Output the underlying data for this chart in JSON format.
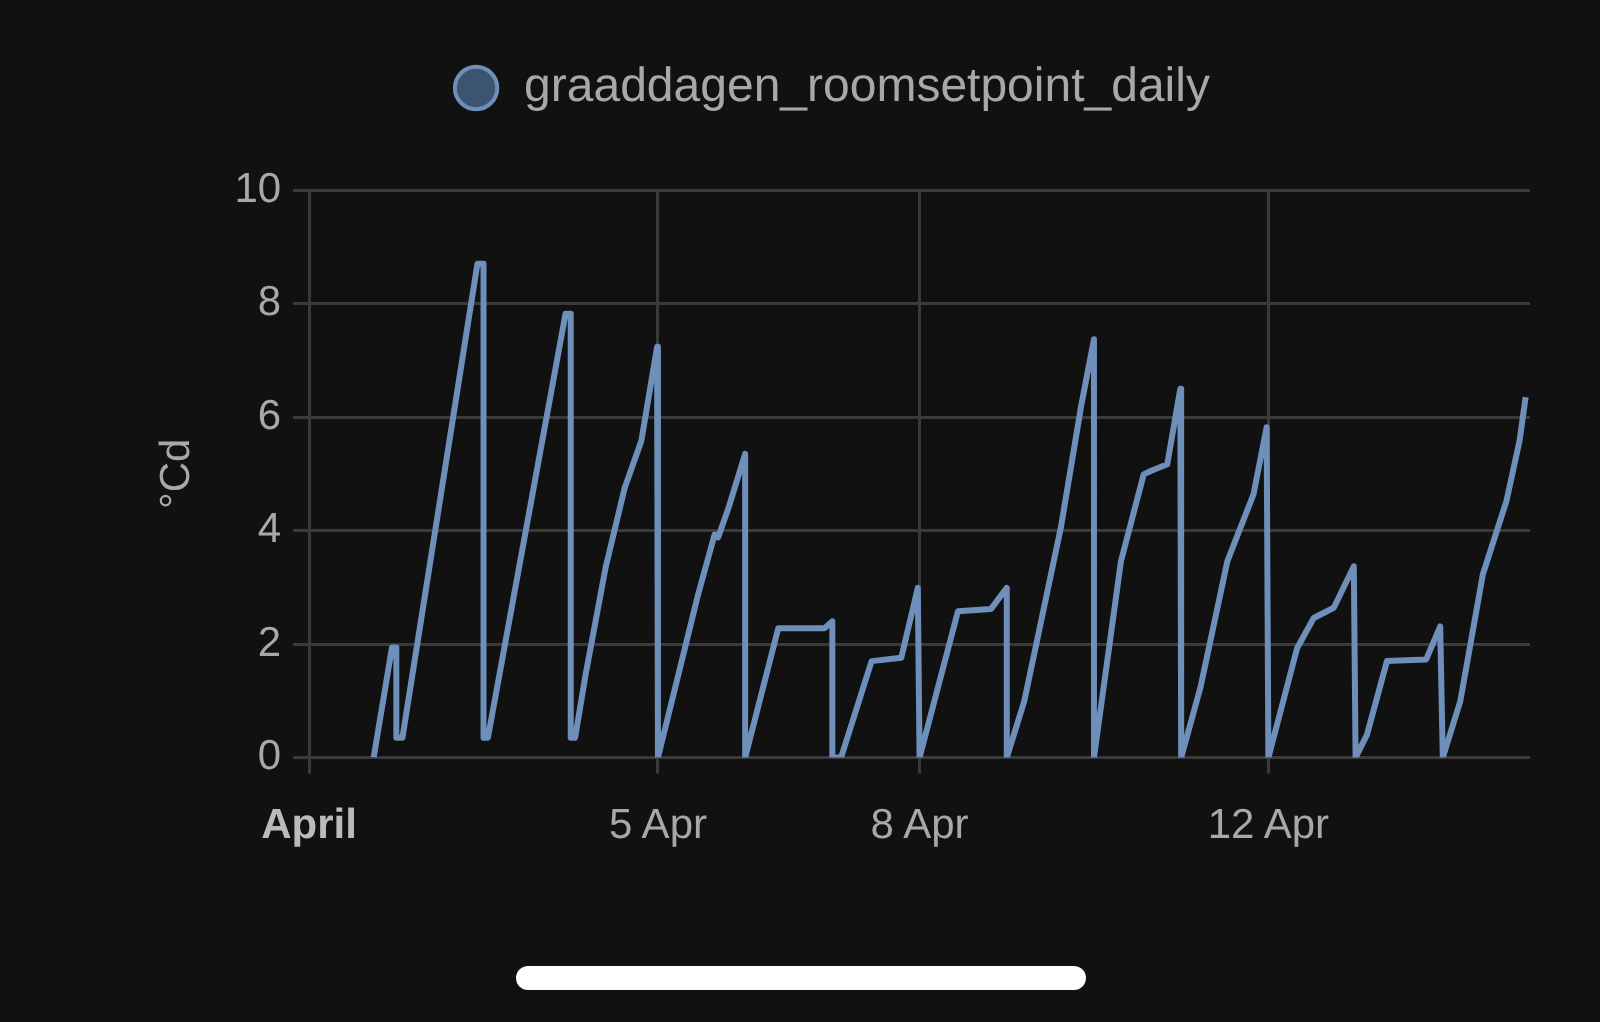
{
  "chart_data": {
    "type": "line",
    "ylabel": "°Cd",
    "series": [
      {
        "name": "graaddagen_roomsetpoint_daily",
        "color": "#6d8fba",
        "x": [
          "--04-01T17:46",
          "--04-01T22:48",
          "--04-02T00:00",
          "--04-02T00:00",
          "--04-02T01:41",
          "--04-02T22:19",
          "--04-03T00:00",
          "--04-03T00:00",
          "--04-03T01:12",
          "--04-03T22:34",
          "--04-04T00:00",
          "--04-04T00:00",
          "--04-04T01:12",
          "--04-04T04:05",
          "--04-04T09:36",
          "--04-04T14:53",
          "--04-04T19:26",
          "--04-04T23:46",
          "--04-05T00:00",
          "--04-05T11:02",
          "--04-05T15:36",
          "--04-05T16:34",
          "--04-05T19:26",
          "--04-06T00:00",
          "--04-06T00:00",
          "--04-06T09:07",
          "--04-06T21:50",
          "--04-07T00:00",
          "--04-07T00:00",
          "--04-07T02:24",
          "--04-07T10:48",
          "--04-07T18:58",
          "--04-07T23:31",
          "--04-08T00:00",
          "--04-08T10:34",
          "--04-08T19:41",
          "--04-09T00:00",
          "--04-09T00:00",
          "--04-09T04:48",
          "--04-09T14:53",
          "--04-09T20:24",
          "--04-10T00:00",
          "--04-10T00:00",
          "--04-10T07:26",
          "--04-10T13:41",
          "--04-10T15:36",
          "--04-10T20:10",
          "--04-10T23:46",
          "--04-11T00:00",
          "--04-11T05:17",
          "--04-11T12:43",
          "--04-11T19:55",
          "--04-11T23:31",
          "--04-12T00:00",
          "--04-12T07:55",
          "--04-12T12:29",
          "--04-12T18:00",
          "--04-12T23:31",
          "--04-13T00:00",
          "--04-13T03:07",
          "--04-13T08:38",
          "--04-13T19:26",
          "--04-13T23:17",
          "--04-14T00:00",
          "--04-14T04:48",
          "--04-14T11:02",
          "--04-14T17:31",
          "--04-14T21:07",
          "--04-14T22:48"
        ],
        "values": [
          0,
          1.94,
          1.94,
          0.35,
          0.35,
          8.7,
          8.7,
          0.35,
          0.35,
          7.82,
          7.82,
          0.35,
          0.35,
          1.46,
          3.35,
          4.76,
          5.58,
          7.24,
          0,
          2.87,
          3.93,
          3.88,
          4.4,
          5.35,
          0,
          2.28,
          2.28,
          2.4,
          0,
          0,
          1.7,
          1.76,
          2.99,
          0,
          2.58,
          2.62,
          2.99,
          0,
          0.99,
          4.05,
          6.17,
          7.37,
          0,
          3.46,
          4.99,
          5.05,
          5.17,
          6.5,
          0,
          1.23,
          3.46,
          4.64,
          5.82,
          0,
          1.93,
          2.46,
          2.64,
          3.37,
          0,
          0.4,
          1.7,
          1.73,
          2.31,
          0,
          0.99,
          3.23,
          4.52,
          5.58,
          6.35
        ]
      }
    ],
    "xlim": [
      "--04-01",
      "--04-15"
    ],
    "xticks": [
      {
        "value": "--04-01",
        "label": "April"
      },
      {
        "value": "--04-05",
        "label": "5 Apr"
      },
      {
        "value": "--04-08",
        "label": "8 Apr"
      },
      {
        "value": "--04-12",
        "label": "12 Apr"
      }
    ],
    "ylim": [
      0,
      10
    ],
    "yticks": [
      0,
      2,
      4,
      6,
      8,
      10
    ],
    "grid": true,
    "legend": "top",
    "marker": "none",
    "line_style": "solid"
  }
}
